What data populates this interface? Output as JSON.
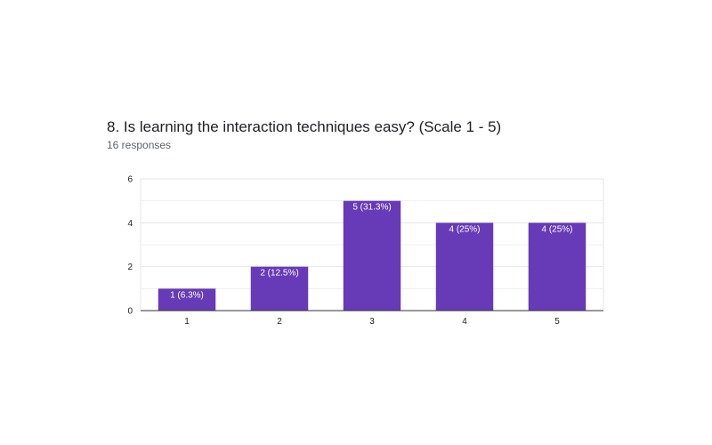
{
  "question": {
    "title": "8. Is learning the interaction techniques easy?  (Scale 1 - 5)",
    "responses": "16 responses"
  },
  "colors": {
    "bar": "#673ab7",
    "grid": "#e6e6e6",
    "axis": "#333333"
  },
  "chart_data": {
    "type": "bar",
    "categories": [
      "1",
      "2",
      "3",
      "4",
      "5"
    ],
    "values": [
      1,
      2,
      5,
      4,
      4
    ],
    "data_labels": [
      "1 (6.3%)",
      "2 (12.5%)",
      "5 (31.3%)",
      "4 (25%)",
      "4 (25%)"
    ],
    "y_ticks": [
      "0",
      "2",
      "4",
      "6"
    ],
    "ylim": [
      0,
      6
    ],
    "title": "8. Is learning the interaction techniques easy?  (Scale 1 - 5)",
    "xlabel": "",
    "ylabel": "",
    "grid": true,
    "legend": "none"
  }
}
